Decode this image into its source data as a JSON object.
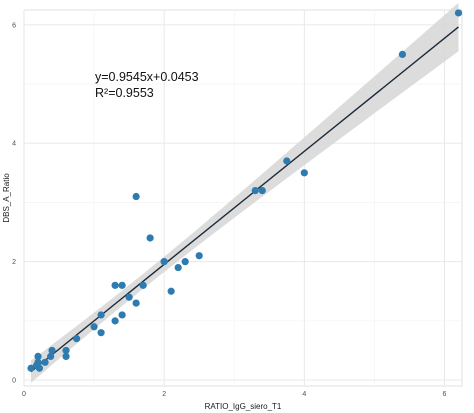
{
  "chart_data": {
    "type": "scatter",
    "xlabel": "RATIO_IgG_siero_T1",
    "ylabel": "DBS_A_Ratio",
    "xlim": [
      0,
      6.25
    ],
    "ylim": [
      -0.1,
      6.25
    ],
    "x_ticks": [
      0,
      2,
      4,
      6
    ],
    "y_ticks": [
      0,
      2,
      4,
      6
    ],
    "x_tick_labels": [
      "0",
      "2",
      "4",
      "6"
    ],
    "y_tick_labels": [
      "0",
      "2",
      "4",
      "6"
    ],
    "grid": true,
    "annotations": [
      "y=0.9545x+0.0453",
      "R²=0.9553"
    ],
    "fit": {
      "slope": 0.9545,
      "intercept": 0.0453,
      "r_squared": 0.9553,
      "confidence_band": true
    },
    "colors": {
      "points": "#2e7bb0",
      "line": "#1c2a3a",
      "band": "#d6d6d6",
      "panel": "#ffffff",
      "grid": "#e6e6e6"
    },
    "points": [
      {
        "x": 0.1,
        "y": 0.2
      },
      {
        "x": 0.18,
        "y": 0.25
      },
      {
        "x": 0.2,
        "y": 0.3
      },
      {
        "x": 0.2,
        "y": 0.4
      },
      {
        "x": 0.22,
        "y": 0.2
      },
      {
        "x": 0.3,
        "y": 0.3
      },
      {
        "x": 0.38,
        "y": 0.4
      },
      {
        "x": 0.4,
        "y": 0.5
      },
      {
        "x": 0.6,
        "y": 0.4
      },
      {
        "x": 0.6,
        "y": 0.5
      },
      {
        "x": 0.75,
        "y": 0.7
      },
      {
        "x": 1.0,
        "y": 0.9
      },
      {
        "x": 1.1,
        "y": 0.8
      },
      {
        "x": 1.1,
        "y": 1.1
      },
      {
        "x": 1.3,
        "y": 1.0
      },
      {
        "x": 1.3,
        "y": 1.6
      },
      {
        "x": 1.4,
        "y": 1.1
      },
      {
        "x": 1.4,
        "y": 1.6
      },
      {
        "x": 1.5,
        "y": 1.4
      },
      {
        "x": 1.6,
        "y": 1.3
      },
      {
        "x": 1.7,
        "y": 1.6
      },
      {
        "x": 1.6,
        "y": 3.1
      },
      {
        "x": 1.8,
        "y": 2.4
      },
      {
        "x": 2.0,
        "y": 2.0
      },
      {
        "x": 2.1,
        "y": 1.5
      },
      {
        "x": 2.2,
        "y": 1.9
      },
      {
        "x": 2.3,
        "y": 2.0
      },
      {
        "x": 2.5,
        "y": 2.1
      },
      {
        "x": 3.3,
        "y": 3.2
      },
      {
        "x": 3.4,
        "y": 3.2
      },
      {
        "x": 3.75,
        "y": 3.7
      },
      {
        "x": 4.0,
        "y": 3.5
      },
      {
        "x": 5.4,
        "y": 5.5
      },
      {
        "x": 6.2,
        "y": 6.2
      }
    ]
  }
}
